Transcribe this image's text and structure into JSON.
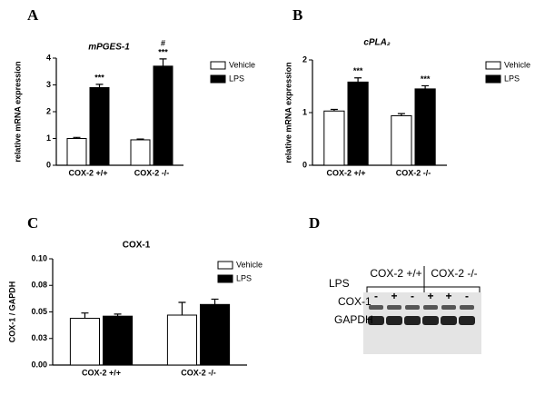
{
  "chart_data": [
    {
      "type": "bar",
      "label": "A",
      "title": "mPGES-1",
      "ylabel": "relative mRNA expression",
      "categories": [
        "COX-2 +/+",
        "COX-2 -/-"
      ],
      "series": [
        {
          "name": "Vehicle",
          "color": "#ffffff",
          "values": [
            1.0,
            0.95
          ],
          "errors": [
            0.04,
            0.03
          ]
        },
        {
          "name": "LPS",
          "color": "#000000",
          "values": [
            2.9,
            3.7
          ],
          "errors": [
            0.12,
            0.27
          ]
        }
      ],
      "ylim": [
        0,
        4
      ],
      "yticks": [
        0,
        1,
        2,
        3,
        4
      ],
      "annotations": [
        {
          "text": "***",
          "series": 1,
          "category": 0
        },
        {
          "text": "***",
          "series": 1,
          "category": 1
        },
        {
          "text": "#",
          "series": 1,
          "category": 1
        }
      ]
    },
    {
      "type": "bar",
      "label": "B",
      "title": "cPLA₂",
      "ylabel": "relative mRNA expression",
      "categories": [
        "COX-2 +/+",
        "COX-2 -/-"
      ],
      "series": [
        {
          "name": "Vehicle",
          "color": "#ffffff",
          "values": [
            1.03,
            0.94
          ],
          "errors": [
            0.03,
            0.04
          ]
        },
        {
          "name": "LPS",
          "color": "#000000",
          "values": [
            1.58,
            1.45
          ],
          "errors": [
            0.08,
            0.06
          ]
        }
      ],
      "ylim": [
        0,
        2
      ],
      "yticks": [
        0,
        1,
        2
      ],
      "annotations": [
        {
          "text": "***",
          "series": 1,
          "category": 0
        },
        {
          "text": "***",
          "series": 1,
          "category": 1
        }
      ]
    },
    {
      "type": "bar",
      "label": "C",
      "title": "COX-1",
      "ylabel": "COX-1 / GAPDH",
      "categories": [
        "COX-2 +/+",
        "COX-2 -/-"
      ],
      "series": [
        {
          "name": "Vehicle",
          "color": "#ffffff",
          "values": [
            0.044,
            0.047
          ],
          "errors": [
            0.005,
            0.012
          ]
        },
        {
          "name": "LPS",
          "color": "#000000",
          "values": [
            0.046,
            0.057
          ],
          "errors": [
            0.002,
            0.005
          ]
        }
      ],
      "ylim": [
        0,
        0.1
      ],
      "yticks": [
        {
          "value": 0,
          "label": "0.00"
        },
        {
          "value": 0.025,
          "label": "0.03"
        },
        {
          "value": 0.05,
          "label": "0.05"
        },
        {
          "value": 0.075,
          "label": "0.08"
        },
        {
          "value": 0.1,
          "label": "0.10"
        }
      ],
      "annotations": []
    }
  ],
  "blot": {
    "label": "D",
    "lps_label": "LPS",
    "groups": [
      "COX-2 +/+",
      "COX-2 -/-"
    ],
    "lanes": [
      "-",
      "+",
      "-",
      "+",
      "+",
      "-"
    ],
    "rows": [
      "COX-1",
      "GAPDH"
    ]
  }
}
